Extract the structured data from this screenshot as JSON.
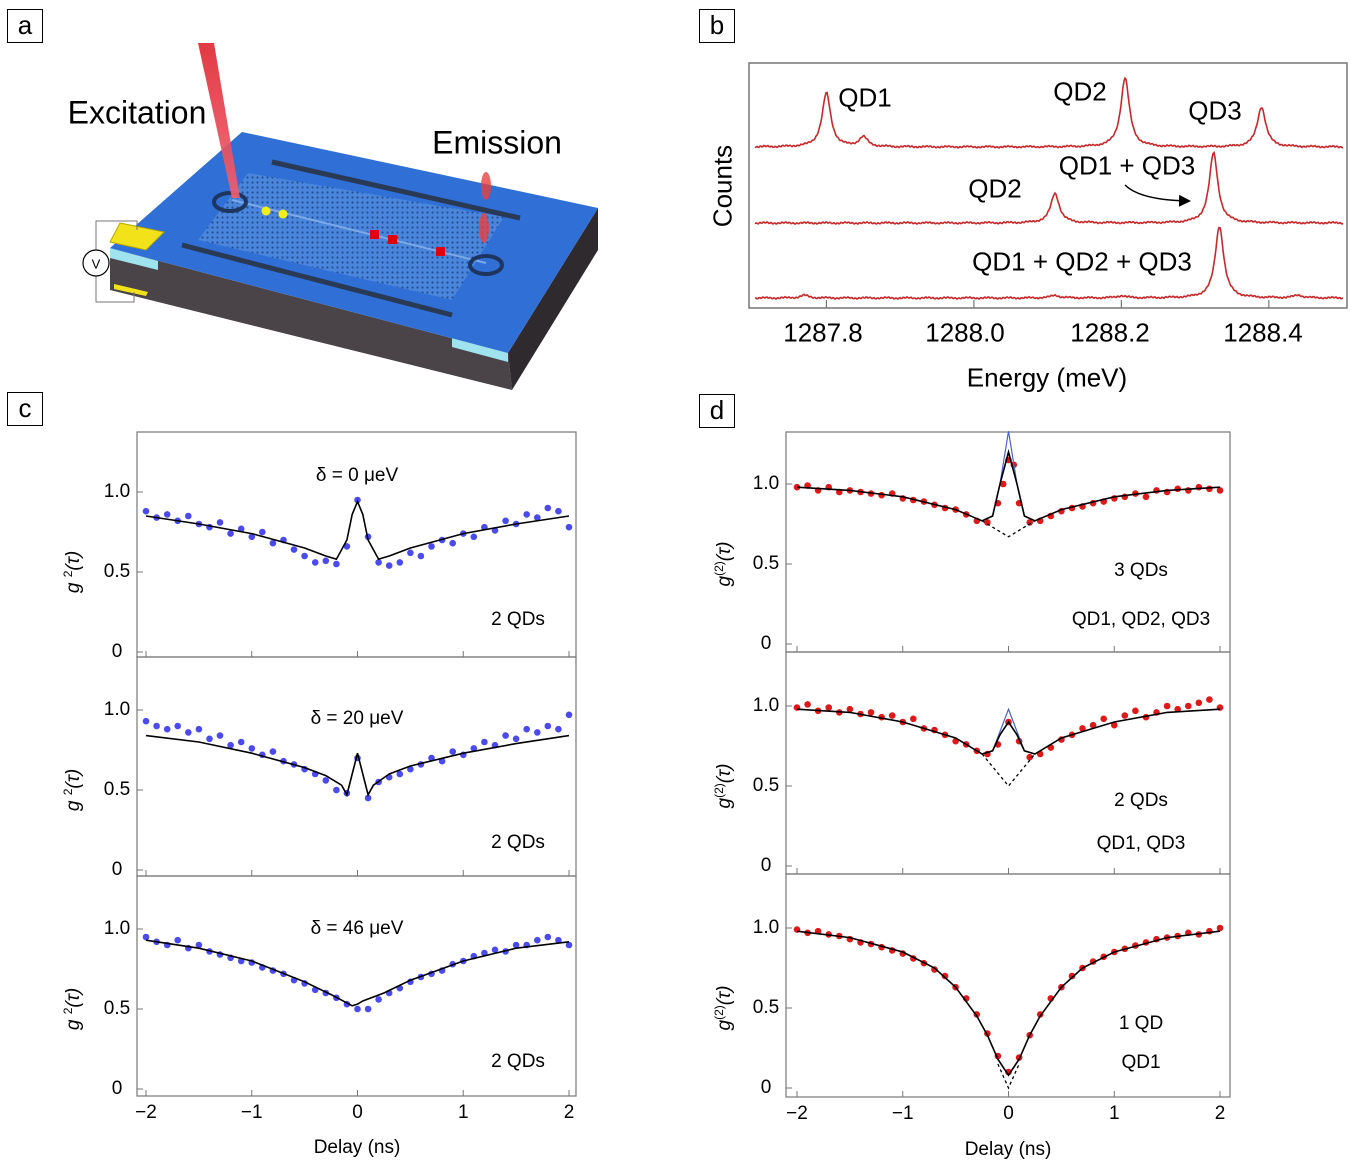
{
  "panel_labels": {
    "a": "a",
    "b": "b",
    "c": "c",
    "d": "d"
  },
  "panel_a": {
    "excitation_label": "Excitation",
    "emission_label": "Emission",
    "voltmeter_label": "V",
    "colors": {
      "substrate_top": "#2f6fd6",
      "substrate_side": "#4a4448",
      "contact": "#f2e21a",
      "laser": "#e0303a",
      "qd_yellow": "#f4f016",
      "qd_red": "#e00010",
      "spacer": "#9fe3ee"
    }
  },
  "chart_data": [
    {
      "id": "b",
      "type": "line",
      "xlabel": "Energy (meV)",
      "ylabel": "Counts",
      "xlim": [
        1287.695,
        1288.506
      ],
      "xticks": [
        "1287.8",
        "1288.0",
        "1288.2",
        "1288.4"
      ],
      "grid": false,
      "color": "#c8282a",
      "peak_hwhm_meV": 0.007,
      "traces": [
        {
          "peaks": [
            {
              "center": 1287.8,
              "height": 1.0
            },
            {
              "center": 1287.85,
              "height": 0.18
            },
            {
              "center": 1288.205,
              "height": 1.28
            },
            {
              "center": 1288.39,
              "height": 0.74
            }
          ]
        },
        {
          "peaks": [
            {
              "center": 1288.11,
              "height": 0.55
            },
            {
              "center": 1288.325,
              "height": 1.3
            }
          ]
        },
        {
          "peaks": [
            {
              "center": 1288.333,
              "height": 1.33
            },
            {
              "center": 1287.77,
              "height": 0.05
            },
            {
              "center": 1288.11,
              "height": 0.05
            },
            {
              "center": 1288.2,
              "height": 0.04
            },
            {
              "center": 1288.44,
              "height": 0.05
            }
          ]
        }
      ],
      "annotations": [
        {
          "text": "QD1",
          "trace": 0
        },
        {
          "text": "QD2",
          "trace": 0
        },
        {
          "text": "QD3",
          "trace": 0
        },
        {
          "text": "QD2",
          "trace": 1
        },
        {
          "text": "QD1 + QD3",
          "trace": 1,
          "arrow": true
        },
        {
          "text": "QD1 + QD2 + QD3",
          "trace": 2
        }
      ]
    },
    {
      "id": "c",
      "type": "scatter",
      "xlabel": "Delay (ns)",
      "ylabel": {
        "base": "g",
        "sup": "2",
        "arg": "(τ)"
      },
      "xlim": [
        -2,
        2
      ],
      "xticks": [
        "−2",
        "−1",
        "0",
        "1",
        "2"
      ],
      "yticks": [
        "0",
        "0.5",
        "1.0"
      ],
      "point_color": "#4a4af0",
      "fit_color": "#000000",
      "subplots": [
        {
          "title": "δ = 0 μeV",
          "note": "2 QDs",
          "points_x": [
            -2,
            -1.9,
            -1.8,
            -1.7,
            -1.6,
            -1.5,
            -1.4,
            -1.3,
            -1.2,
            -1.1,
            -1,
            -0.9,
            -0.8,
            -0.7,
            -0.6,
            -0.5,
            -0.4,
            -0.3,
            -0.2,
            -0.1,
            0,
            0.1,
            0.2,
            0.3,
            0.4,
            0.5,
            0.6,
            0.7,
            0.8,
            0.9,
            1,
            1.1,
            1.2,
            1.3,
            1.4,
            1.5,
            1.6,
            1.7,
            1.8,
            1.9,
            2
          ],
          "points_y": [
            0.88,
            0.84,
            0.86,
            0.82,
            0.85,
            0.8,
            0.78,
            0.81,
            0.74,
            0.77,
            0.72,
            0.75,
            0.68,
            0.7,
            0.64,
            0.6,
            0.56,
            0.57,
            0.55,
            0.66,
            0.95,
            0.72,
            0.56,
            0.54,
            0.56,
            0.62,
            0.6,
            0.66,
            0.7,
            0.68,
            0.74,
            0.72,
            0.78,
            0.76,
            0.82,
            0.8,
            0.86,
            0.84,
            0.9,
            0.88,
            0.78
          ],
          "fit_x": [
            -2,
            -1.5,
            -1,
            -0.5,
            -0.3,
            -0.2,
            -0.1,
            -0.05,
            0,
            0.05,
            0.1,
            0.2,
            0.3,
            0.5,
            1,
            1.5,
            2
          ],
          "fit_y": [
            0.85,
            0.8,
            0.74,
            0.65,
            0.6,
            0.58,
            0.7,
            0.86,
            0.94,
            0.86,
            0.7,
            0.58,
            0.6,
            0.65,
            0.74,
            0.8,
            0.85
          ]
        },
        {
          "title": "δ = 20 μeV",
          "note": "2 QDs",
          "points_x": [
            -2,
            -1.9,
            -1.8,
            -1.7,
            -1.6,
            -1.5,
            -1.4,
            -1.3,
            -1.2,
            -1.1,
            -1,
            -0.9,
            -0.8,
            -0.7,
            -0.6,
            -0.5,
            -0.4,
            -0.3,
            -0.2,
            -0.1,
            0,
            0.1,
            0.2,
            0.3,
            0.4,
            0.5,
            0.6,
            0.7,
            0.8,
            0.9,
            1,
            1.1,
            1.2,
            1.3,
            1.4,
            1.5,
            1.6,
            1.7,
            1.8,
            1.9,
            2
          ],
          "points_y": [
            0.93,
            0.9,
            0.88,
            0.9,
            0.86,
            0.88,
            0.82,
            0.84,
            0.78,
            0.8,
            0.76,
            0.72,
            0.74,
            0.68,
            0.66,
            0.63,
            0.6,
            0.56,
            0.5,
            0.48,
            0.7,
            0.45,
            0.55,
            0.58,
            0.6,
            0.63,
            0.66,
            0.7,
            0.68,
            0.74,
            0.72,
            0.76,
            0.8,
            0.78,
            0.84,
            0.82,
            0.88,
            0.86,
            0.9,
            0.88,
            0.97
          ],
          "fit_x": [
            -2,
            -1.5,
            -1,
            -0.5,
            -0.3,
            -0.15,
            -0.1,
            -0.05,
            0,
            0.05,
            0.1,
            0.15,
            0.3,
            0.5,
            1,
            1.5,
            2
          ],
          "fit_y": [
            0.84,
            0.8,
            0.73,
            0.64,
            0.59,
            0.53,
            0.47,
            0.6,
            0.73,
            0.6,
            0.47,
            0.53,
            0.6,
            0.65,
            0.73,
            0.79,
            0.84
          ]
        },
        {
          "title": "δ = 46 μeV",
          "note": "2 QDs",
          "points_x": [
            -2,
            -1.9,
            -1.8,
            -1.7,
            -1.6,
            -1.5,
            -1.4,
            -1.3,
            -1.2,
            -1.1,
            -1,
            -0.9,
            -0.8,
            -0.7,
            -0.6,
            -0.5,
            -0.4,
            -0.3,
            -0.2,
            -0.1,
            0,
            0.1,
            0.2,
            0.3,
            0.4,
            0.5,
            0.6,
            0.7,
            0.8,
            0.9,
            1,
            1.1,
            1.2,
            1.3,
            1.4,
            1.5,
            1.6,
            1.7,
            1.8,
            1.9,
            2
          ],
          "points_y": [
            0.95,
            0.92,
            0.9,
            0.93,
            0.88,
            0.9,
            0.86,
            0.84,
            0.82,
            0.8,
            0.79,
            0.76,
            0.74,
            0.72,
            0.68,
            0.66,
            0.62,
            0.6,
            0.57,
            0.53,
            0.5,
            0.5,
            0.56,
            0.6,
            0.63,
            0.67,
            0.7,
            0.72,
            0.74,
            0.78,
            0.8,
            0.83,
            0.85,
            0.87,
            0.86,
            0.9,
            0.9,
            0.93,
            0.95,
            0.93,
            0.9
          ],
          "fit_x": [
            -2,
            -1.5,
            -1,
            -0.5,
            -0.25,
            -0.05,
            0,
            0.05,
            0.25,
            0.5,
            1,
            1.5,
            2
          ],
          "fit_y": [
            0.93,
            0.88,
            0.8,
            0.67,
            0.59,
            0.52,
            0.53,
            0.55,
            0.6,
            0.68,
            0.8,
            0.88,
            0.92
          ]
        }
      ]
    },
    {
      "id": "d",
      "type": "scatter",
      "xlabel": "Delay (ns)",
      "ylabel": {
        "base": "g",
        "sup": "(2)",
        "arg": "(τ)"
      },
      "xlim": [
        -2,
        2
      ],
      "xticks": [
        "−2",
        "−1",
        "0",
        "1",
        "2"
      ],
      "yticks": [
        "0",
        "0.5",
        "1.0"
      ],
      "point_color": "#e01818",
      "fit_color": "#000000",
      "alt_fit_color": "#4a62c8",
      "subplots": [
        {
          "note": "3 QDs",
          "note2": "QD1, QD2, QD3",
          "points_x": [
            -2,
            -1.9,
            -1.8,
            -1.7,
            -1.6,
            -1.5,
            -1.4,
            -1.3,
            -1.2,
            -1.1,
            -1,
            -0.9,
            -0.8,
            -0.7,
            -0.6,
            -0.5,
            -0.4,
            -0.3,
            -0.2,
            -0.1,
            -0.05,
            0,
            0.05,
            0.1,
            0.2,
            0.3,
            0.4,
            0.5,
            0.6,
            0.7,
            0.8,
            0.9,
            1,
            1.1,
            1.2,
            1.3,
            1.4,
            1.5,
            1.6,
            1.7,
            1.8,
            1.9,
            2
          ],
          "points_y": [
            0.98,
            0.99,
            0.96,
            0.98,
            0.95,
            0.96,
            0.95,
            0.94,
            0.93,
            0.94,
            0.91,
            0.9,
            0.89,
            0.87,
            0.85,
            0.84,
            0.81,
            0.77,
            0.76,
            0.88,
            1.0,
            1.15,
            1.12,
            0.88,
            0.76,
            0.77,
            0.8,
            0.83,
            0.85,
            0.86,
            0.88,
            0.89,
            0.91,
            0.92,
            0.94,
            0.92,
            0.96,
            0.95,
            0.97,
            0.96,
            0.98,
            0.97,
            0.96
          ],
          "fit_x": [
            -2,
            -1.5,
            -1,
            -0.5,
            -0.25,
            -0.15,
            -0.08,
            0,
            0.08,
            0.15,
            0.25,
            0.5,
            1,
            1.5,
            2
          ],
          "fit_y": [
            0.98,
            0.96,
            0.92,
            0.84,
            0.77,
            0.8,
            1.0,
            1.2,
            1.0,
            0.8,
            0.77,
            0.84,
            0.92,
            0.96,
            0.98
          ],
          "alt_fit_x": [
            -0.25,
            -0.15,
            -0.08,
            0,
            0.08,
            0.15,
            0.25
          ],
          "alt_fit_y": [
            0.77,
            0.8,
            1.0,
            1.33,
            1.0,
            0.8,
            0.77
          ],
          "baseline_x": [
            -0.25,
            0,
            0.25
          ],
          "baseline_y": [
            0.77,
            0.67,
            0.77
          ]
        },
        {
          "note": "2 QDs",
          "note2": "QD1, QD3",
          "points_x": [
            -2,
            -1.9,
            -1.8,
            -1.7,
            -1.6,
            -1.5,
            -1.4,
            -1.3,
            -1.2,
            -1.1,
            -1,
            -0.9,
            -0.8,
            -0.7,
            -0.6,
            -0.5,
            -0.4,
            -0.3,
            -0.2,
            -0.1,
            0,
            0.1,
            0.2,
            0.3,
            0.4,
            0.5,
            0.6,
            0.7,
            0.8,
            0.9,
            1,
            1.1,
            1.2,
            1.3,
            1.4,
            1.5,
            1.6,
            1.7,
            1.8,
            1.9,
            2
          ],
          "points_y": [
            0.99,
            1.01,
            0.97,
            0.99,
            0.96,
            0.98,
            0.95,
            0.96,
            0.93,
            0.94,
            0.9,
            0.92,
            0.86,
            0.85,
            0.82,
            0.78,
            0.76,
            0.72,
            0.7,
            0.76,
            0.9,
            0.78,
            0.68,
            0.7,
            0.74,
            0.79,
            0.82,
            0.86,
            0.88,
            0.92,
            0.88,
            0.94,
            0.97,
            0.93,
            0.96,
            1.0,
            0.98,
            1.0,
            1.02,
            1.04,
            0.99
          ],
          "fit_x": [
            -2,
            -1.5,
            -1,
            -0.5,
            -0.25,
            -0.15,
            -0.08,
            0,
            0.08,
            0.15,
            0.25,
            0.5,
            1,
            1.5,
            2
          ],
          "fit_y": [
            0.98,
            0.96,
            0.9,
            0.8,
            0.7,
            0.72,
            0.82,
            0.9,
            0.82,
            0.72,
            0.7,
            0.8,
            0.9,
            0.96,
            0.98
          ],
          "alt_fit_x": [
            -0.25,
            -0.15,
            -0.08,
            0,
            0.08,
            0.15,
            0.25
          ],
          "alt_fit_y": [
            0.7,
            0.72,
            0.84,
            0.98,
            0.84,
            0.72,
            0.7
          ],
          "baseline_x": [
            -0.25,
            0,
            0.25
          ],
          "baseline_y": [
            0.7,
            0.5,
            0.7
          ]
        },
        {
          "note": "1 QD",
          "note2": "QD1",
          "points_x": [
            -2,
            -1.9,
            -1.8,
            -1.7,
            -1.6,
            -1.5,
            -1.4,
            -1.3,
            -1.2,
            -1.1,
            -1,
            -0.9,
            -0.8,
            -0.7,
            -0.6,
            -0.5,
            -0.4,
            -0.3,
            -0.2,
            -0.1,
            0,
            0.1,
            0.2,
            0.3,
            0.4,
            0.5,
            0.6,
            0.7,
            0.8,
            0.9,
            1,
            1.1,
            1.2,
            1.3,
            1.4,
            1.5,
            1.6,
            1.7,
            1.8,
            1.9,
            2
          ],
          "points_y": [
            0.99,
            0.97,
            0.98,
            0.96,
            0.95,
            0.93,
            0.91,
            0.9,
            0.88,
            0.86,
            0.84,
            0.81,
            0.78,
            0.74,
            0.7,
            0.63,
            0.56,
            0.46,
            0.34,
            0.2,
            0.1,
            0.19,
            0.33,
            0.46,
            0.56,
            0.63,
            0.7,
            0.75,
            0.79,
            0.82,
            0.85,
            0.87,
            0.89,
            0.91,
            0.93,
            0.94,
            0.95,
            0.97,
            0.96,
            0.98,
            1.0
          ],
          "fit_x": [
            -2,
            -1.5,
            -1,
            -0.7,
            -0.5,
            -0.3,
            -0.2,
            -0.1,
            0,
            0.1,
            0.2,
            0.3,
            0.5,
            0.7,
            1,
            1.5,
            2
          ],
          "fit_y": [
            0.98,
            0.94,
            0.85,
            0.75,
            0.63,
            0.45,
            0.33,
            0.18,
            0.08,
            0.18,
            0.33,
            0.45,
            0.63,
            0.75,
            0.85,
            0.94,
            0.98
          ],
          "baseline_x": [
            -0.1,
            0,
            0.1
          ],
          "baseline_y": [
            0.15,
            0.0,
            0.15
          ]
        }
      ]
    }
  ]
}
